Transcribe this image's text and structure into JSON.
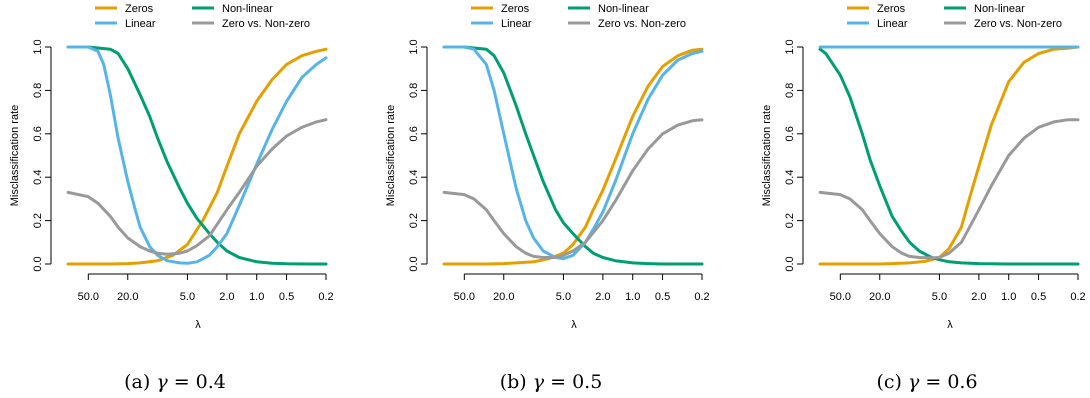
{
  "legend": [
    {
      "label": "Zeros",
      "color": "#E69F00"
    },
    {
      "label": "Non-linear",
      "color": "#009E73"
    },
    {
      "label": "Linear",
      "color": "#56B4E9"
    },
    {
      "label": "Zero vs. Non-zero",
      "color": "#999999"
    }
  ],
  "chart_data": [
    {
      "type": "line",
      "panel": "(a)",
      "caption": {
        "prefix": "(a) ",
        "math": "γ",
        "suffix": " = 0.4"
      },
      "xlabel": "λ",
      "ylabel": "Misclassification rate",
      "x_scale": "log, reversed",
      "xlim": [
        90,
        0.17
      ],
      "ylim": [
        0,
        1
      ],
      "xticks": [
        50,
        20,
        5,
        2,
        1,
        0.5,
        0.2
      ],
      "xtick_labels": [
        "50.0",
        "20.0",
        "5.0",
        "2.0",
        "1.0",
        "0.5",
        "0.2"
      ],
      "yticks": [
        0,
        0.2,
        0.4,
        0.6,
        0.8,
        1
      ],
      "ytick_labels": [
        "0.0",
        "0.2",
        "0.4",
        "0.6",
        "0.8",
        "1.0"
      ],
      "grid": false,
      "series": [
        {
          "name": "Zeros",
          "color": "#E69F00",
          "x": [
            80,
            50,
            30,
            20,
            15,
            10,
            7,
            5,
            3.5,
            2.5,
            2,
            1.5,
            1,
            0.7,
            0.5,
            0.35,
            0.25,
            0.2
          ],
          "y": [
            0,
            0,
            0,
            0.002,
            0.005,
            0.015,
            0.04,
            0.09,
            0.2,
            0.33,
            0.45,
            0.6,
            0.75,
            0.85,
            0.92,
            0.96,
            0.98,
            0.99
          ]
        },
        {
          "name": "Non-linear",
          "color": "#009E73",
          "x": [
            80,
            50,
            30,
            25,
            20,
            15,
            12,
            10,
            8,
            6,
            5,
            4,
            3,
            2.5,
            2,
            1.5,
            1,
            0.7,
            0.5,
            0.3,
            0.2
          ],
          "y": [
            1,
            1,
            0.99,
            0.97,
            0.9,
            0.78,
            0.68,
            0.58,
            0.47,
            0.35,
            0.28,
            0.21,
            0.14,
            0.1,
            0.06,
            0.03,
            0.01,
            0.003,
            0.001,
            0,
            0
          ]
        },
        {
          "name": "Linear",
          "color": "#56B4E9",
          "x": [
            80,
            50,
            40,
            35,
            30,
            25,
            20,
            17,
            15,
            12,
            10,
            8,
            6,
            5,
            4,
            3,
            2.5,
            2,
            1.5,
            1,
            0.7,
            0.5,
            0.35,
            0.25,
            0.2
          ],
          "y": [
            1,
            1,
            0.98,
            0.92,
            0.78,
            0.58,
            0.38,
            0.26,
            0.17,
            0.08,
            0.04,
            0.015,
            0.005,
            0.003,
            0.01,
            0.04,
            0.08,
            0.14,
            0.27,
            0.46,
            0.62,
            0.75,
            0.86,
            0.92,
            0.95
          ]
        },
        {
          "name": "Zero vs. Non-zero",
          "color": "#999999",
          "x": [
            80,
            50,
            40,
            30,
            25,
            20,
            15,
            12,
            10,
            8,
            6,
            5,
            4,
            3,
            2,
            1.5,
            1,
            0.7,
            0.5,
            0.35,
            0.25,
            0.2
          ],
          "y": [
            0.33,
            0.31,
            0.28,
            0.22,
            0.17,
            0.12,
            0.08,
            0.06,
            0.05,
            0.045,
            0.05,
            0.06,
            0.085,
            0.13,
            0.25,
            0.33,
            0.45,
            0.53,
            0.59,
            0.63,
            0.655,
            0.665
          ]
        }
      ]
    },
    {
      "type": "line",
      "panel": "(b)",
      "caption": {
        "prefix": "(b) ",
        "math": "γ",
        "suffix": " = 0.5"
      },
      "xlabel": "λ",
      "ylabel": "Misclassification rate",
      "x_scale": "log, reversed",
      "xlim": [
        90,
        0.17
      ],
      "ylim": [
        0,
        1
      ],
      "xticks": [
        50,
        20,
        5,
        2,
        1,
        0.5,
        0.2
      ],
      "xtick_labels": [
        "50.0",
        "20.0",
        "5.0",
        "2.0",
        "1.0",
        "0.5",
        "0.2"
      ],
      "yticks": [
        0,
        0.2,
        0.4,
        0.6,
        0.8,
        1
      ],
      "ytick_labels": [
        "0.0",
        "0.2",
        "0.4",
        "0.6",
        "0.8",
        "1.0"
      ],
      "grid": false,
      "series": [
        {
          "name": "Zeros",
          "color": "#E69F00",
          "x": [
            80,
            50,
            30,
            20,
            15,
            10,
            7,
            5,
            4,
            3,
            2.5,
            2,
            1.5,
            1,
            0.7,
            0.5,
            0.35,
            0.25,
            0.2
          ],
          "y": [
            0,
            0,
            0,
            0.002,
            0.005,
            0.01,
            0.025,
            0.05,
            0.09,
            0.17,
            0.25,
            0.34,
            0.48,
            0.68,
            0.82,
            0.91,
            0.96,
            0.985,
            0.99
          ]
        },
        {
          "name": "Non-linear",
          "color": "#009E73",
          "x": [
            80,
            50,
            30,
            25,
            20,
            15,
            12,
            10,
            8,
            6,
            5,
            4,
            3,
            2.5,
            2,
            1.5,
            1,
            0.7,
            0.5,
            0.3,
            0.2
          ],
          "y": [
            1,
            1,
            0.99,
            0.96,
            0.88,
            0.73,
            0.6,
            0.5,
            0.38,
            0.25,
            0.19,
            0.14,
            0.08,
            0.05,
            0.03,
            0.015,
            0.005,
            0.002,
            0,
            0,
            0
          ]
        },
        {
          "name": "Linear",
          "color": "#56B4E9",
          "x": [
            80,
            50,
            40,
            30,
            25,
            20,
            15,
            12,
            10,
            8,
            6,
            5,
            4,
            3,
            2.5,
            2,
            1.5,
            1,
            0.7,
            0.5,
            0.35,
            0.25,
            0.2
          ],
          "y": [
            1,
            1,
            0.99,
            0.92,
            0.8,
            0.6,
            0.35,
            0.2,
            0.12,
            0.06,
            0.03,
            0.025,
            0.04,
            0.1,
            0.16,
            0.24,
            0.38,
            0.6,
            0.76,
            0.87,
            0.94,
            0.97,
            0.98
          ]
        },
        {
          "name": "Zero vs. Non-zero",
          "color": "#999999",
          "x": [
            80,
            50,
            40,
            30,
            25,
            20,
            15,
            12,
            10,
            8,
            6,
            5,
            4,
            3,
            2,
            1.5,
            1,
            0.7,
            0.5,
            0.35,
            0.25,
            0.2
          ],
          "y": [
            0.33,
            0.32,
            0.3,
            0.25,
            0.2,
            0.14,
            0.08,
            0.05,
            0.035,
            0.03,
            0.03,
            0.04,
            0.06,
            0.1,
            0.2,
            0.29,
            0.43,
            0.53,
            0.6,
            0.64,
            0.66,
            0.665
          ]
        }
      ]
    },
    {
      "type": "line",
      "panel": "(c)",
      "caption": {
        "prefix": "(c) ",
        "math": "γ",
        "suffix": " = 0.6"
      },
      "xlabel": "λ",
      "ylabel": "Misclassification rate",
      "x_scale": "log, reversed",
      "xlim": [
        90,
        0.17
      ],
      "ylim": [
        0,
        1
      ],
      "xticks": [
        50,
        20,
        5,
        2,
        1,
        0.5,
        0.2
      ],
      "xtick_labels": [
        "50.0",
        "20.0",
        "5.0",
        "2.0",
        "1.0",
        "0.5",
        "0.2"
      ],
      "yticks": [
        0,
        0.2,
        0.4,
        0.6,
        0.8,
        1
      ],
      "ytick_labels": [
        "0.0",
        "0.2",
        "0.4",
        "0.6",
        "0.8",
        "1.0"
      ],
      "grid": false,
      "series": [
        {
          "name": "Zeros",
          "color": "#E69F00",
          "x": [
            80,
            50,
            30,
            20,
            15,
            10,
            7,
            5,
            4,
            3,
            2.5,
            2,
            1.5,
            1,
            0.7,
            0.5,
            0.35,
            0.25,
            0.2
          ],
          "y": [
            0,
            0,
            0,
            0,
            0.002,
            0.005,
            0.012,
            0.03,
            0.07,
            0.17,
            0.3,
            0.45,
            0.64,
            0.84,
            0.93,
            0.97,
            0.99,
            0.995,
            1
          ]
        },
        {
          "name": "Non-linear",
          "color": "#009E73",
          "x": [
            80,
            70,
            50,
            40,
            30,
            25,
            20,
            15,
            12,
            10,
            8,
            6,
            5,
            4,
            3,
            2,
            1,
            0.5,
            0.2
          ],
          "y": [
            0.99,
            0.97,
            0.87,
            0.77,
            0.6,
            0.48,
            0.36,
            0.22,
            0.15,
            0.1,
            0.06,
            0.03,
            0.02,
            0.01,
            0.005,
            0.002,
            0,
            0,
            0
          ]
        },
        {
          "name": "Linear",
          "color": "#56B4E9",
          "x": [
            80,
            0.2
          ],
          "y": [
            1,
            1
          ]
        },
        {
          "name": "Zero vs. Non-zero",
          "color": "#999999",
          "x": [
            80,
            50,
            40,
            30,
            25,
            20,
            15,
            12,
            10,
            8,
            6,
            5,
            4,
            3,
            2,
            1.5,
            1,
            0.7,
            0.5,
            0.35,
            0.25,
            0.2
          ],
          "y": [
            0.33,
            0.32,
            0.3,
            0.25,
            0.2,
            0.14,
            0.08,
            0.05,
            0.035,
            0.03,
            0.028,
            0.03,
            0.05,
            0.1,
            0.25,
            0.36,
            0.5,
            0.58,
            0.63,
            0.655,
            0.665,
            0.665
          ]
        }
      ]
    }
  ]
}
